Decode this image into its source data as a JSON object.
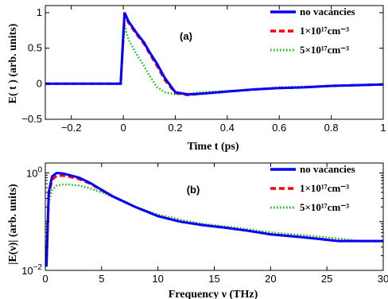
{
  "chart_data": [
    {
      "type": "line",
      "panel_label": "(a)",
      "xlabel": "Time  t (ps)",
      "ylabel": "E( t ) (arb. units)",
      "xlim": [
        -0.3,
        1.0
      ],
      "ylim": [
        -0.5,
        1.1
      ],
      "xticks": [
        -0.2,
        0,
        0.2,
        0.4,
        0.6,
        0.8,
        1
      ],
      "xtick_labels": [
        "−0.2",
        "0",
        "0.2",
        "0.4",
        "0.6",
        "0.8",
        "1"
      ],
      "yticks": [
        -0.5,
        0,
        0.5,
        1
      ],
      "ytick_labels": [
        "−0.5",
        "0",
        "0.5",
        "1"
      ],
      "legend_position": "top-right",
      "series": [
        {
          "name": "no vacancies",
          "color": "#0000ff",
          "style": "solid",
          "x": [
            -0.3,
            -0.1,
            -0.01,
            0.0,
            0.005,
            0.02,
            0.05,
            0.08,
            0.1,
            0.13,
            0.16,
            0.2,
            0.25,
            0.3,
            0.4,
            0.5,
            0.6,
            0.7,
            0.8,
            0.9,
            1.0
          ],
          "y": [
            0.0,
            0.0,
            0.0,
            0.7,
            1.0,
            0.88,
            0.72,
            0.58,
            0.45,
            0.28,
            0.08,
            -0.12,
            -0.15,
            -0.14,
            -0.11,
            -0.08,
            -0.06,
            -0.05,
            -0.03,
            -0.02,
            -0.01
          ]
        },
        {
          "name": "1×10¹⁷cm⁻³",
          "color": "#ff0000",
          "style": "dashed",
          "x": [
            -0.3,
            -0.1,
            -0.01,
            0.0,
            0.005,
            0.02,
            0.05,
            0.08,
            0.1,
            0.13,
            0.16,
            0.2,
            0.25,
            0.3,
            0.4,
            0.5,
            0.6,
            0.7,
            0.8,
            0.9,
            1.0
          ],
          "y": [
            0.0,
            0.0,
            0.0,
            0.65,
            0.96,
            0.86,
            0.7,
            0.56,
            0.43,
            0.25,
            0.05,
            -0.13,
            -0.16,
            -0.14,
            -0.11,
            -0.08,
            -0.06,
            -0.05,
            -0.03,
            -0.02,
            -0.01
          ]
        },
        {
          "name": "5×10¹⁷cm⁻³",
          "color": "#00c000",
          "style": "dotted",
          "x": [
            -0.3,
            -0.1,
            -0.01,
            0.0,
            0.005,
            0.02,
            0.05,
            0.08,
            0.1,
            0.13,
            0.16,
            0.2,
            0.25,
            0.3,
            0.4,
            0.5,
            0.6,
            0.7,
            0.8,
            0.9,
            1.0
          ],
          "y": [
            0.0,
            0.0,
            0.0,
            0.55,
            0.82,
            0.62,
            0.42,
            0.25,
            0.12,
            -0.05,
            -0.12,
            -0.15,
            -0.14,
            -0.12,
            -0.1,
            -0.08,
            -0.05,
            -0.04,
            -0.03,
            -0.02,
            -0.01
          ]
        }
      ]
    },
    {
      "type": "line",
      "panel_label": "(b)",
      "xlabel": "Frequency ν (THz)",
      "ylabel": "|E(ν)| (arb. units)",
      "xlim": [
        0,
        30
      ],
      "ylim": [
        0.01,
        1.6
      ],
      "yscale": "log",
      "xticks": [
        0,
        5,
        10,
        15,
        20,
        25,
        30
      ],
      "xtick_labels": [
        "0",
        "5",
        "10",
        "15",
        "20",
        "25",
        "30"
      ],
      "yticks": [
        0.01,
        1
      ],
      "legend_position": "top-right",
      "series": [
        {
          "name": "no vacancies",
          "color": "#0000ff",
          "style": "solid",
          "x": [
            0.1,
            0.3,
            0.6,
            1,
            1.5,
            2,
            3,
            4,
            5,
            6,
            8,
            10,
            12,
            14,
            16,
            18,
            20,
            22,
            24,
            26,
            28,
            30
          ],
          "y": [
            0.012,
            0.4,
            0.85,
            1.0,
            0.98,
            0.92,
            0.8,
            0.62,
            0.45,
            0.33,
            0.2,
            0.13,
            0.1,
            0.085,
            0.075,
            0.065,
            0.055,
            0.05,
            0.045,
            0.04,
            0.04,
            0.04
          ]
        },
        {
          "name": "1×10¹⁷cm⁻³",
          "color": "#ff0000",
          "style": "dashed",
          "x": [
            0.1,
            0.3,
            0.6,
            1,
            1.5,
            2,
            3,
            4,
            5,
            6,
            8,
            10,
            12,
            14,
            16,
            18,
            20,
            22,
            24,
            26,
            28,
            30
          ],
          "y": [
            0.012,
            0.35,
            0.72,
            0.88,
            0.88,
            0.85,
            0.75,
            0.6,
            0.44,
            0.33,
            0.2,
            0.13,
            0.1,
            0.085,
            0.075,
            0.065,
            0.055,
            0.05,
            0.045,
            0.04,
            0.04,
            0.04
          ]
        },
        {
          "name": "5×10¹⁷cm⁻³",
          "color": "#00c000",
          "style": "dotted",
          "x": [
            0.1,
            0.3,
            0.6,
            1,
            1.5,
            2,
            3,
            4,
            5,
            6,
            8,
            10,
            12,
            14,
            16,
            18,
            20,
            22,
            24,
            26,
            28,
            30
          ],
          "y": [
            0.012,
            0.25,
            0.45,
            0.55,
            0.58,
            0.58,
            0.55,
            0.48,
            0.4,
            0.32,
            0.2,
            0.14,
            0.11,
            0.09,
            0.08,
            0.07,
            0.06,
            0.055,
            0.05,
            0.045,
            0.04,
            0.04
          ]
        }
      ]
    }
  ]
}
